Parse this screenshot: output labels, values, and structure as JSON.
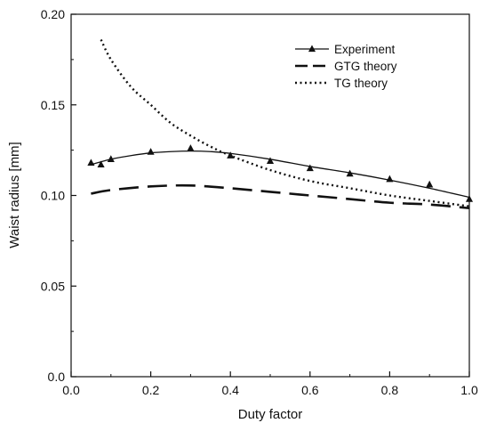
{
  "chart_data": {
    "type": "line",
    "title": "",
    "xlabel": "Duty factor",
    "ylabel": "Waist radius [mm]",
    "xlim": [
      0.0,
      1.0
    ],
    "ylim": [
      0.0,
      0.2
    ],
    "xticks": [
      "0.0",
      "0.2",
      "0.4",
      "0.6",
      "0.8",
      "1.0"
    ],
    "xtick_values": [
      0.0,
      0.2,
      0.4,
      0.6,
      0.8,
      1.0
    ],
    "yticks": [
      "0.0",
      "0.05",
      "0.10",
      "0.15",
      "0.20"
    ],
    "ytick_values": [
      0.0,
      0.05,
      0.1,
      0.15,
      0.2
    ],
    "grid": false,
    "legend_position": "top-right",
    "series": [
      {
        "name": "Experiment",
        "style": "solid-with-triangle-markers",
        "x": [
          0.05,
          0.075,
          0.1,
          0.2,
          0.3,
          0.4,
          0.5,
          0.6,
          0.7,
          0.8,
          0.9,
          1.0
        ],
        "y": [
          0.118,
          0.117,
          0.12,
          0.124,
          0.126,
          0.122,
          0.119,
          0.115,
          0.112,
          0.109,
          0.106,
          0.098
        ],
        "fit_x": [
          0.05,
          0.1,
          0.15,
          0.2,
          0.25,
          0.3,
          0.35,
          0.4,
          0.5,
          0.6,
          0.7,
          0.8,
          0.9,
          1.0
        ],
        "fit_y": [
          0.117,
          0.12,
          0.122,
          0.1235,
          0.1242,
          0.1245,
          0.1242,
          0.1232,
          0.12,
          0.116,
          0.1125,
          0.1085,
          0.104,
          0.099
        ]
      },
      {
        "name": "GTG theory",
        "style": "dashed",
        "x": [
          0.05,
          0.1,
          0.2,
          0.3,
          0.4,
          0.5,
          0.6,
          0.7,
          0.8,
          0.9,
          1.0
        ],
        "y": [
          0.101,
          0.103,
          0.105,
          0.1055,
          0.104,
          0.102,
          0.1,
          0.098,
          0.096,
          0.095,
          0.093
        ]
      },
      {
        "name": "TG theory",
        "style": "dotted",
        "x": [
          0.075,
          0.1,
          0.15,
          0.2,
          0.25,
          0.3,
          0.35,
          0.4,
          0.5,
          0.6,
          0.7,
          0.8,
          0.9,
          1.0
        ],
        "y": [
          0.186,
          0.175,
          0.16,
          0.15,
          0.14,
          0.133,
          0.127,
          0.122,
          0.114,
          0.108,
          0.104,
          0.1,
          0.097,
          0.094
        ]
      }
    ]
  }
}
